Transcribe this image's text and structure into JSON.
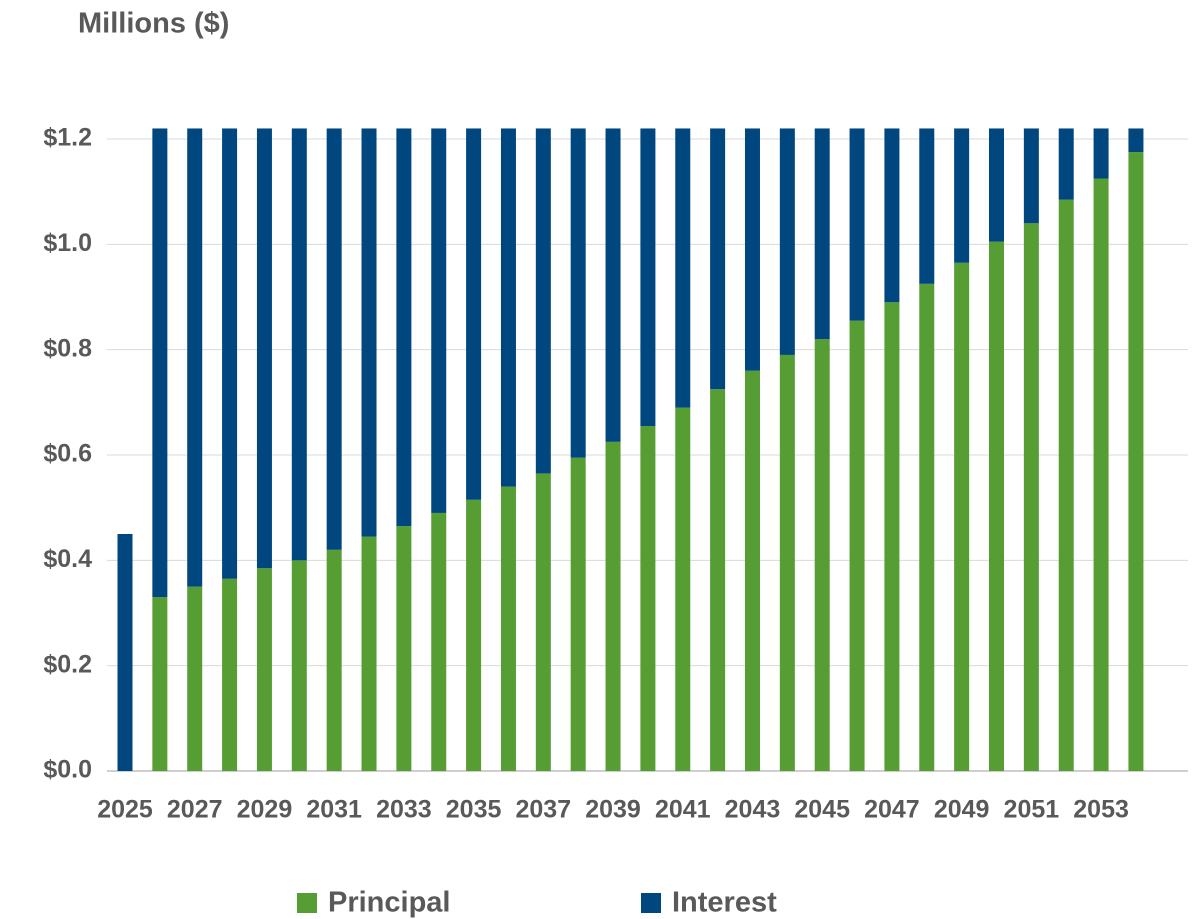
{
  "chart_data": {
    "type": "stacked_bar",
    "y_axis_label": "Millions ($)",
    "categories": [
      "2025",
      null,
      "2027",
      null,
      "2029",
      null,
      "2031",
      null,
      "2033",
      null,
      "2035",
      null,
      "2037",
      null,
      "2039",
      null,
      "2041",
      null,
      "2043",
      null,
      "2045",
      null,
      "2047",
      null,
      "2049",
      null,
      "2051",
      null,
      "2053",
      null
    ],
    "series": [
      {
        "name": "Principal",
        "color": "#569d34",
        "values": [
          0,
          0.33,
          0.35,
          0.365,
          0.385,
          0.4,
          0.42,
          0.445,
          0.465,
          0.49,
          0.515,
          0.54,
          0.565,
          0.595,
          0.625,
          0.655,
          0.69,
          0.725,
          0.76,
          0.79,
          0.82,
          0.855,
          0.89,
          0.925,
          0.965,
          1.005,
          1.04,
          1.085,
          1.125,
          1.175
        ]
      },
      {
        "name": "Interest",
        "color": "#00467f",
        "values": [
          0.45,
          0.89,
          0.87,
          0.855,
          0.835,
          0.82,
          0.8,
          0.775,
          0.755,
          0.73,
          0.705,
          0.68,
          0.655,
          0.625,
          0.595,
          0.565,
          0.53,
          0.495,
          0.46,
          0.43,
          0.4,
          0.365,
          0.33,
          0.295,
          0.255,
          0.215,
          0.18,
          0.135,
          0.095,
          0.045
        ]
      }
    ],
    "ylim": [
      0,
      1.2
    ],
    "yticks": [
      {
        "value": 0,
        "label": "$0.0"
      },
      {
        "value": 0.2,
        "label": "$0.2"
      },
      {
        "value": 0.4,
        "label": "$0.4"
      },
      {
        "value": 0.6,
        "label": "$0.6"
      },
      {
        "value": 0.8,
        "label": "$0.8"
      },
      {
        "value": 1.0,
        "label": "$1.0"
      },
      {
        "value": 1.2,
        "label": "$1.2"
      }
    ],
    "grid": true,
    "legend": "bottom"
  }
}
